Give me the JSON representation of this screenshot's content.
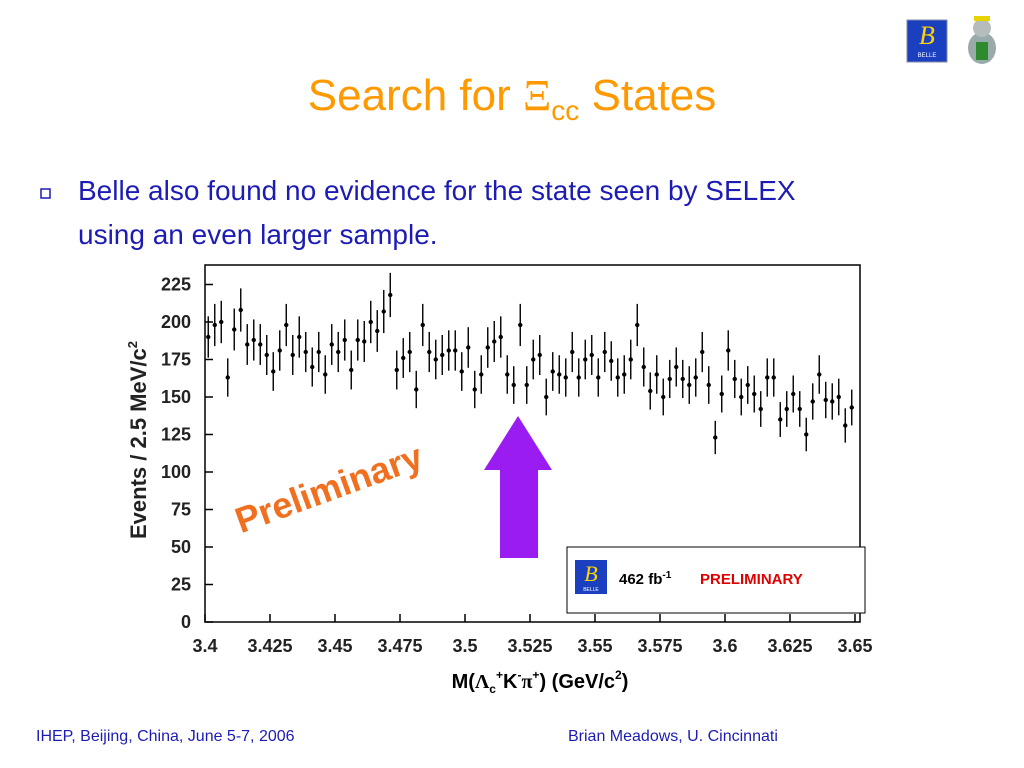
{
  "slide": {
    "title": [
      "Search for ",
      "Ξ",
      "cc",
      " States"
    ],
    "bullet": [
      "Belle also found no evidence for the state seen by SELEX",
      "using an even larger sample."
    ],
    "footer_left": "IHEP, Beijing, China, June 5-7, 2006",
    "footer_right": "Brian Meadows, U. Cincinnati",
    "logo_letter": "B",
    "logo_name": "BELLE"
  },
  "chart_data": {
    "type": "scatter",
    "x_label": [
      "M(",
      "Λ",
      "c",
      "+",
      "K",
      "-",
      "π",
      "+",
      ")     (GeV/c",
      "2",
      ")"
    ],
    "y_label": [
      "Events / 2.5 MeV/c",
      "2"
    ],
    "annotation": "Preliminary",
    "legend_text": [
      "462 fb",
      "-1",
      "PRELIMINARY"
    ],
    "color": "#000000",
    "xlim": [
      3.4,
      3.65
    ],
    "ylim": [
      0,
      238
    ],
    "xticks": [
      3.4,
      3.425,
      3.45,
      3.475,
      3.5,
      3.525,
      3.55,
      3.575,
      3.6,
      3.625,
      3.65
    ],
    "yticks": [
      0,
      25,
      50,
      75,
      100,
      125,
      150,
      175,
      200,
      225
    ],
    "x": [
      3.40125,
      3.40375,
      3.40625,
      3.40875,
      3.41125,
      3.41375,
      3.41625,
      3.41875,
      3.42125,
      3.42375,
      3.42625,
      3.42875,
      3.43125,
      3.43375,
      3.43625,
      3.43875,
      3.44125,
      3.44375,
      3.44625,
      3.44875,
      3.45125,
      3.45375,
      3.45625,
      3.45875,
      3.46125,
      3.46375,
      3.46625,
      3.46875,
      3.47125,
      3.47375,
      3.47625,
      3.47875,
      3.48125,
      3.48375,
      3.48625,
      3.48875,
      3.49125,
      3.49375,
      3.49625,
      3.49875,
      3.50125,
      3.50375,
      3.50625,
      3.50875,
      3.51125,
      3.51375,
      3.51625,
      3.51875,
      3.52125,
      3.52375,
      3.52625,
      3.52875,
      3.53125,
      3.53375,
      3.53625,
      3.53875,
      3.54125,
      3.54375,
      3.54625,
      3.54875,
      3.55125,
      3.55375,
      3.55625,
      3.55875,
      3.56125,
      3.56375,
      3.56625,
      3.56875,
      3.57125,
      3.57375,
      3.57625,
      3.57875,
      3.58125,
      3.58375,
      3.58625,
      3.58875,
      3.59125,
      3.59375,
      3.59625,
      3.59875,
      3.60125,
      3.60375,
      3.60625,
      3.60875,
      3.61125,
      3.61375,
      3.61625,
      3.61875,
      3.62125,
      3.62375,
      3.62625,
      3.62875,
      3.63125,
      3.63375,
      3.63625,
      3.63875,
      3.64125,
      3.64375,
      3.64625,
      3.64875
    ],
    "values": [
      190,
      198,
      200,
      163,
      195,
      208,
      185,
      188,
      185,
      178,
      167,
      181,
      198,
      178,
      190,
      180,
      170,
      180,
      165,
      185,
      180,
      188,
      168,
      188,
      187,
      200,
      194,
      207,
      218,
      168,
      176,
      180,
      155,
      198,
      180,
      175,
      178,
      181,
      181,
      167,
      183,
      155,
      165,
      183,
      187,
      190,
      165,
      158,
      198,
      158,
      175,
      178,
      150,
      167,
      165,
      163,
      180,
      163,
      175,
      178,
      163,
      180,
      174,
      163,
      165,
      175,
      198,
      170,
      154,
      165,
      150,
      162,
      170,
      162,
      158,
      163,
      180,
      158,
      123,
      152,
      181,
      162,
      150,
      158,
      152,
      142,
      163,
      163,
      135,
      142,
      152,
      142,
      125,
      147,
      165,
      148,
      147,
      150,
      131,
      143
    ]
  }
}
